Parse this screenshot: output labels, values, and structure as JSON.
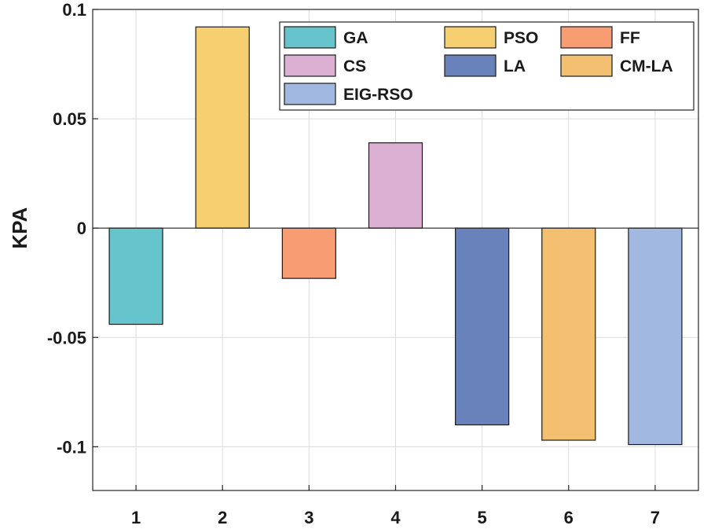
{
  "chart_data": {
    "type": "bar",
    "title": "",
    "xlabel": "",
    "ylabel": "KPA",
    "ylim": [
      -0.12,
      0.1
    ],
    "grid": true,
    "legend_position": "top-right",
    "categories": [
      "1",
      "2",
      "3",
      "4",
      "5",
      "6",
      "7"
    ],
    "yticks": [
      0.1,
      0.05,
      0,
      -0.05,
      -0.1
    ],
    "ytick_labels": [
      "0.1",
      "0.05",
      "0",
      "-0.05",
      "-0.1"
    ],
    "series": [
      {
        "name": "GA",
        "category": "1",
        "value": -0.044,
        "color": "#66C5CC"
      },
      {
        "name": "PSO",
        "category": "2",
        "value": 0.092,
        "color": "#F6CF71"
      },
      {
        "name": "FF",
        "category": "3",
        "value": -0.023,
        "color": "#F89C74"
      },
      {
        "name": "CS",
        "category": "4",
        "value": 0.039,
        "color": "#DCB0D2"
      },
      {
        "name": "LA",
        "category": "5",
        "value": -0.09,
        "color": "#6A82BB"
      },
      {
        "name": "CM-LA",
        "category": "6",
        "value": -0.097,
        "color": "#F2C070"
      },
      {
        "name": "EIG-RSO",
        "category": "7",
        "value": -0.099,
        "color": "#A1B8E1"
      }
    ]
  }
}
